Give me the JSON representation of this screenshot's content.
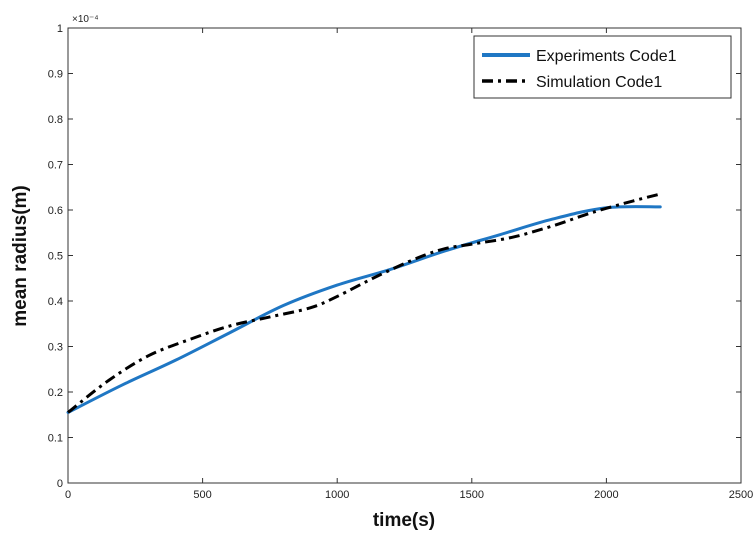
{
  "chart_data": {
    "type": "line",
    "title": "",
    "xlabel": "time(s)",
    "ylabel": "mean radius(m)",
    "y_multiplier": "×10⁻⁴",
    "xlim": [
      0,
      2500
    ],
    "ylim": [
      0,
      1
    ],
    "x_ticks": [
      0,
      500,
      1000,
      1500,
      2000,
      2500
    ],
    "y_ticks": [
      0,
      0.1,
      0.2,
      0.3,
      0.4,
      0.5,
      0.6,
      0.7,
      0.8,
      0.9,
      1
    ],
    "grid": false,
    "legend_position": "top-right",
    "series": [
      {
        "name": "Experiments Code1",
        "color": "#1f77c4",
        "style": "solid",
        "x": [
          0,
          200,
          400,
          600,
          800,
          1000,
          1200,
          1400,
          1600,
          1800,
          2000,
          2200
        ],
        "y": [
          0.155,
          0.215,
          0.27,
          0.33,
          0.39,
          0.435,
          0.47,
          0.51,
          0.545,
          0.58,
          0.605,
          0.607
        ]
      },
      {
        "name": "Simulation Code1",
        "color": "#000000",
        "style": "dashdot",
        "x": [
          0,
          150,
          300,
          450,
          600,
          750,
          900,
          1000,
          1150,
          1300,
          1400,
          1500,
          1650,
          1800,
          1950,
          2100,
          2200
        ],
        "y": [
          0.155,
          0.225,
          0.28,
          0.315,
          0.345,
          0.365,
          0.385,
          0.41,
          0.455,
          0.495,
          0.515,
          0.525,
          0.54,
          0.565,
          0.595,
          0.62,
          0.635
        ]
      }
    ]
  }
}
